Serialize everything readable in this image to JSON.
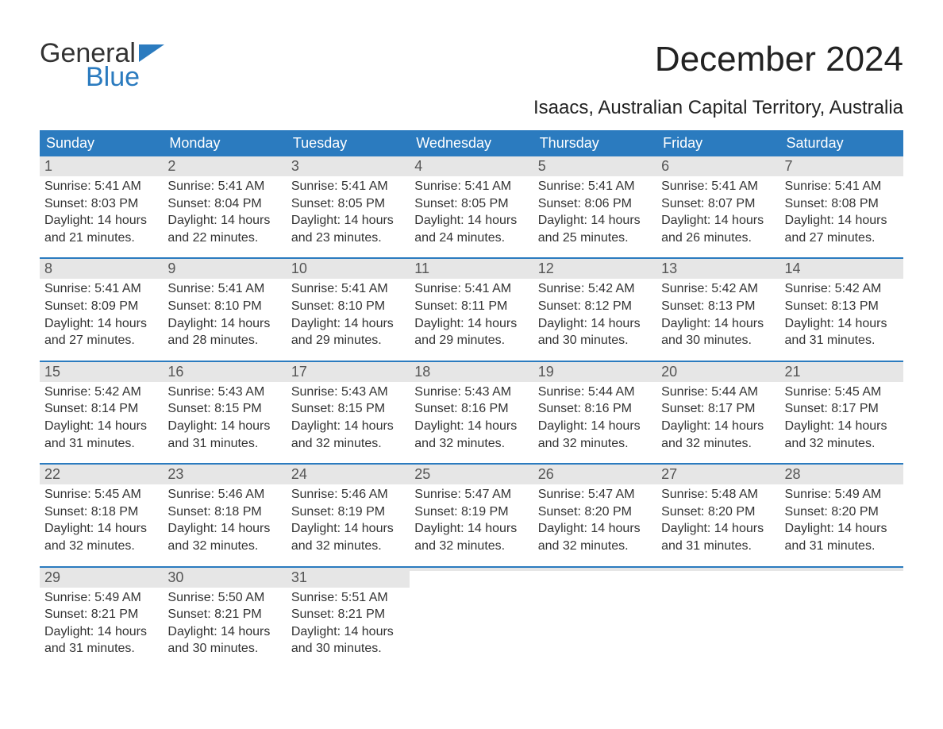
{
  "logo": {
    "line1": "General",
    "line2": "Blue",
    "flag_color": "#2b7bbf"
  },
  "title": "December 2024",
  "subtitle": "Isaacs, Australian Capital Territory, Australia",
  "colors": {
    "header_bg": "#2b7bbf",
    "header_text": "#ffffff",
    "daynum_bg": "#e6e6e6",
    "week_border": "#2b7bbf",
    "text": "#333333",
    "background": "#ffffff"
  },
  "typography": {
    "title_fontsize": 44,
    "subtitle_fontsize": 24,
    "weekday_fontsize": 18,
    "daynum_fontsize": 18,
    "body_fontsize": 16
  },
  "weekdays": [
    "Sunday",
    "Monday",
    "Tuesday",
    "Wednesday",
    "Thursday",
    "Friday",
    "Saturday"
  ],
  "weeks": [
    [
      {
        "num": "1",
        "sunrise": "5:41 AM",
        "sunset": "8:03 PM",
        "daylight": "14 hours and 21 minutes."
      },
      {
        "num": "2",
        "sunrise": "5:41 AM",
        "sunset": "8:04 PM",
        "daylight": "14 hours and 22 minutes."
      },
      {
        "num": "3",
        "sunrise": "5:41 AM",
        "sunset": "8:05 PM",
        "daylight": "14 hours and 23 minutes."
      },
      {
        "num": "4",
        "sunrise": "5:41 AM",
        "sunset": "8:05 PM",
        "daylight": "14 hours and 24 minutes."
      },
      {
        "num": "5",
        "sunrise": "5:41 AM",
        "sunset": "8:06 PM",
        "daylight": "14 hours and 25 minutes."
      },
      {
        "num": "6",
        "sunrise": "5:41 AM",
        "sunset": "8:07 PM",
        "daylight": "14 hours and 26 minutes."
      },
      {
        "num": "7",
        "sunrise": "5:41 AM",
        "sunset": "8:08 PM",
        "daylight": "14 hours and 27 minutes."
      }
    ],
    [
      {
        "num": "8",
        "sunrise": "5:41 AM",
        "sunset": "8:09 PM",
        "daylight": "14 hours and 27 minutes."
      },
      {
        "num": "9",
        "sunrise": "5:41 AM",
        "sunset": "8:10 PM",
        "daylight": "14 hours and 28 minutes."
      },
      {
        "num": "10",
        "sunrise": "5:41 AM",
        "sunset": "8:10 PM",
        "daylight": "14 hours and 29 minutes."
      },
      {
        "num": "11",
        "sunrise": "5:41 AM",
        "sunset": "8:11 PM",
        "daylight": "14 hours and 29 minutes."
      },
      {
        "num": "12",
        "sunrise": "5:42 AM",
        "sunset": "8:12 PM",
        "daylight": "14 hours and 30 minutes."
      },
      {
        "num": "13",
        "sunrise": "5:42 AM",
        "sunset": "8:13 PM",
        "daylight": "14 hours and 30 minutes."
      },
      {
        "num": "14",
        "sunrise": "5:42 AM",
        "sunset": "8:13 PM",
        "daylight": "14 hours and 31 minutes."
      }
    ],
    [
      {
        "num": "15",
        "sunrise": "5:42 AM",
        "sunset": "8:14 PM",
        "daylight": "14 hours and 31 minutes."
      },
      {
        "num": "16",
        "sunrise": "5:43 AM",
        "sunset": "8:15 PM",
        "daylight": "14 hours and 31 minutes."
      },
      {
        "num": "17",
        "sunrise": "5:43 AM",
        "sunset": "8:15 PM",
        "daylight": "14 hours and 32 minutes."
      },
      {
        "num": "18",
        "sunrise": "5:43 AM",
        "sunset": "8:16 PM",
        "daylight": "14 hours and 32 minutes."
      },
      {
        "num": "19",
        "sunrise": "5:44 AM",
        "sunset": "8:16 PM",
        "daylight": "14 hours and 32 minutes."
      },
      {
        "num": "20",
        "sunrise": "5:44 AM",
        "sunset": "8:17 PM",
        "daylight": "14 hours and 32 minutes."
      },
      {
        "num": "21",
        "sunrise": "5:45 AM",
        "sunset": "8:17 PM",
        "daylight": "14 hours and 32 minutes."
      }
    ],
    [
      {
        "num": "22",
        "sunrise": "5:45 AM",
        "sunset": "8:18 PM",
        "daylight": "14 hours and 32 minutes."
      },
      {
        "num": "23",
        "sunrise": "5:46 AM",
        "sunset": "8:18 PM",
        "daylight": "14 hours and 32 minutes."
      },
      {
        "num": "24",
        "sunrise": "5:46 AM",
        "sunset": "8:19 PM",
        "daylight": "14 hours and 32 minutes."
      },
      {
        "num": "25",
        "sunrise": "5:47 AM",
        "sunset": "8:19 PM",
        "daylight": "14 hours and 32 minutes."
      },
      {
        "num": "26",
        "sunrise": "5:47 AM",
        "sunset": "8:20 PM",
        "daylight": "14 hours and 32 minutes."
      },
      {
        "num": "27",
        "sunrise": "5:48 AM",
        "sunset": "8:20 PM",
        "daylight": "14 hours and 31 minutes."
      },
      {
        "num": "28",
        "sunrise": "5:49 AM",
        "sunset": "8:20 PM",
        "daylight": "14 hours and 31 minutes."
      }
    ],
    [
      {
        "num": "29",
        "sunrise": "5:49 AM",
        "sunset": "8:21 PM",
        "daylight": "14 hours and 31 minutes."
      },
      {
        "num": "30",
        "sunrise": "5:50 AM",
        "sunset": "8:21 PM",
        "daylight": "14 hours and 30 minutes."
      },
      {
        "num": "31",
        "sunrise": "5:51 AM",
        "sunset": "8:21 PM",
        "daylight": "14 hours and 30 minutes."
      },
      {
        "empty": true
      },
      {
        "empty": true
      },
      {
        "empty": true
      },
      {
        "empty": true
      }
    ]
  ],
  "labels": {
    "sunrise": "Sunrise:",
    "sunset": "Sunset:",
    "daylight": "Daylight:"
  }
}
